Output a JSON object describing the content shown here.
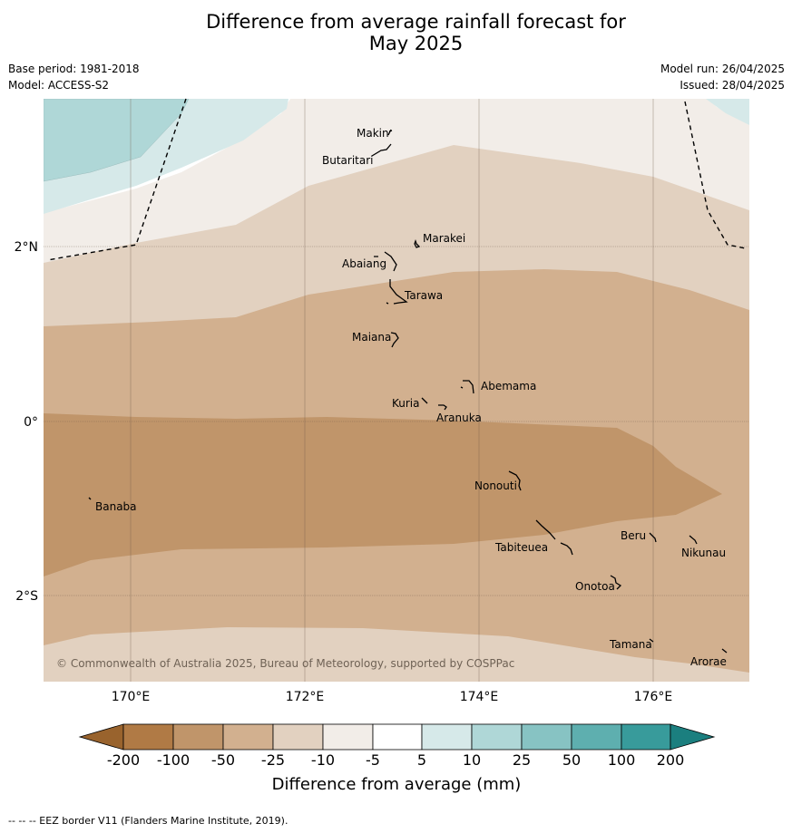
{
  "header": {
    "title_line1": "Difference from average rainfall forecast for",
    "title_line2": "May 2025",
    "base_period": "Base period: 1981-2018",
    "model": "Model: ACCESS-S2",
    "model_run": "Model run: 26/04/2025",
    "issued": "Issued: 28/04/2025"
  },
  "map": {
    "lat_labels": [
      "2°N",
      "0°",
      "2°S"
    ],
    "lon_labels": [
      "170°E",
      "172°E",
      "174°E",
      "176°E"
    ],
    "places": [
      "Makin",
      "Butaritari",
      "Marakei",
      "Abaiang",
      "Tarawa",
      "Maiana",
      "Abemama",
      "Kuria",
      "Aranuka",
      "Nonouti",
      "Banaba",
      "Beru",
      "Tabiteuea",
      "Nikunau",
      "Onotoa",
      "Tamana",
      "Arorae"
    ],
    "copyright": "© Commonwealth of Australia 2025, Bureau of Meteorology, supported by COSPPac",
    "colors": {
      "below_200": "#99632d",
      "m200_m100": "#b07a45",
      "m100_m50": "#c0956a",
      "m50_m25": "#d2b08f",
      "m25_m10": "#e2d1c0",
      "m10_m5": "#f2ede8",
      "m5_5": "#ffffff",
      "5_10": "#d6e9e9",
      "10_25": "#afd7d7",
      "25_50": "#87c3c3",
      "50_100": "#5eafaf",
      "100_200": "#389b9b",
      "above_200": "#1b7f7f"
    }
  },
  "legend": {
    "ticks": [
      "-200",
      "-100",
      "-50",
      "-25",
      "-10",
      "-5",
      "5",
      "10",
      "25",
      "50",
      "100",
      "200"
    ],
    "label": "Difference from average (mm)"
  },
  "footer": {
    "eez_note": "--  --  -- EEZ border V11 (Flanders Marine Institute, 2019)."
  }
}
